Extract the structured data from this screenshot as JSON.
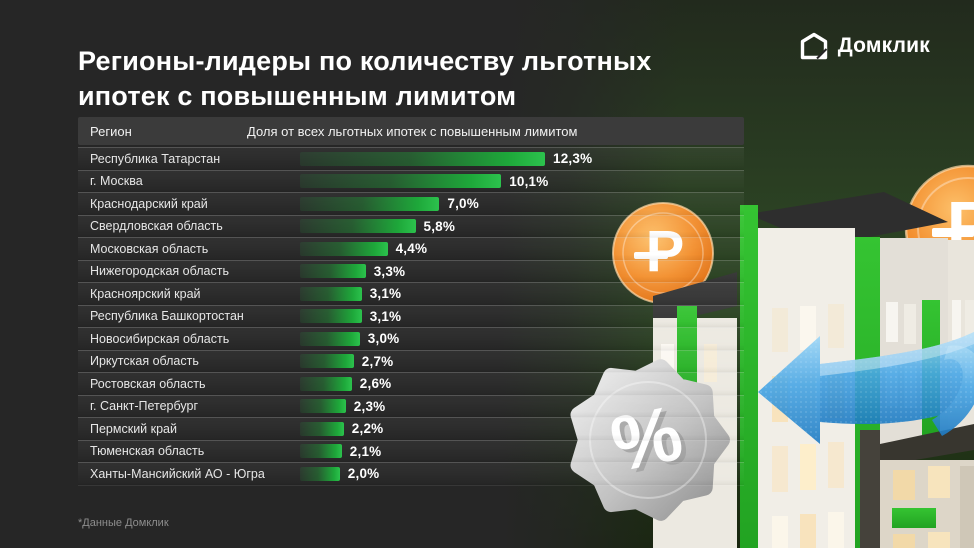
{
  "title": "Регионы-лидеры по количеству льготных ипотек с повышенным лимитом",
  "logo": {
    "text": "Домклик",
    "icon": "domclick-house-icon"
  },
  "footnote": "*Данные Домклик",
  "table": {
    "columns": [
      "Регион",
      "Доля от всех льготных ипотек с повышенным лимитом"
    ],
    "rows": [
      {
        "region": "Республика Татарстан",
        "value": "12,3%"
      },
      {
        "region": "г. Москва",
        "value": "10,1%"
      },
      {
        "region": "Краснодарский край",
        "value": "7,0%"
      },
      {
        "region": "Свердловская область",
        "value": "5,8%"
      },
      {
        "region": "Московская область",
        "value": "4,4%"
      },
      {
        "region": "Нижегородская область",
        "value": "3,3%"
      },
      {
        "region": "Красноярский край",
        "value": "3,1%"
      },
      {
        "region": "Республика Башкортостан",
        "value": "3,1%"
      },
      {
        "region": "Новосибирская область",
        "value": "3,0%"
      },
      {
        "region": "Иркутская область",
        "value": "2,7%"
      },
      {
        "region": "Ростовская область",
        "value": "2,6%"
      },
      {
        "region": "г. Санкт-Петербург",
        "value": "2,3%"
      },
      {
        "region": "Пермский край",
        "value": "2,2%"
      },
      {
        "region": "Тюменская область",
        "value": "2,1%"
      },
      {
        "region": "Ханты-Мансийский АО - Югра",
        "value": "2,0%"
      }
    ]
  },
  "chart_data": {
    "type": "bar",
    "orientation": "horizontal",
    "title": "Регионы-лидеры по количеству льготных ипотек с повышенным лимитом",
    "xlabel": "Доля от всех льготных ипотек с повышенным лимитом",
    "ylabel": "Регион",
    "categories": [
      "Республика Татарстан",
      "г. Москва",
      "Краснодарский край",
      "Свердловская область",
      "Московская область",
      "Нижегородская область",
      "Красноярский край",
      "Республика Башкортостан",
      "Новосибирская область",
      "Иркутская область",
      "Ростовская область",
      "г. Санкт-Петербург",
      "Пермский край",
      "Тюменская область",
      "Ханты-Мансийский АО - Югра"
    ],
    "values": [
      12.3,
      10.1,
      7.0,
      5.8,
      4.4,
      3.3,
      3.1,
      3.1,
      3.0,
      2.7,
      2.6,
      2.3,
      2.2,
      2.1,
      2.0
    ],
    "value_labels": [
      "12,3%",
      "10,1%",
      "7,0%",
      "5,8%",
      "4,4%",
      "3,3%",
      "3,1%",
      "3,1%",
      "3,0%",
      "2,7%",
      "2,6%",
      "2,3%",
      "2,2%",
      "2,1%",
      "2,0%"
    ],
    "value_suffix": "%",
    "xlim": [
      0,
      12.3
    ],
    "grid": false,
    "legend": false,
    "bar_gradient": [
      "#223524",
      "#2cc24d"
    ],
    "source_note": "*Данные Домклик"
  },
  "colors": {
    "background": "#262626",
    "header_band": "#3b3b3b",
    "bar_green": "#24b244",
    "accent_green": "#2db92c",
    "text": "#ffffff",
    "muted_text": "#8d8d8d",
    "backdrop_green": "#2b4123",
    "coin_orange": "#f08c28",
    "arrow_blue": "#3f9fe0",
    "badge_silver": "#c9c9c9"
  },
  "illustration": {
    "elements": [
      "ruble-coin-icon",
      "ruble-coin-icon",
      "apartment-building",
      "apartment-building",
      "apartment-building",
      "percent-badge-icon",
      "left-arrow-3d-icon"
    ]
  }
}
